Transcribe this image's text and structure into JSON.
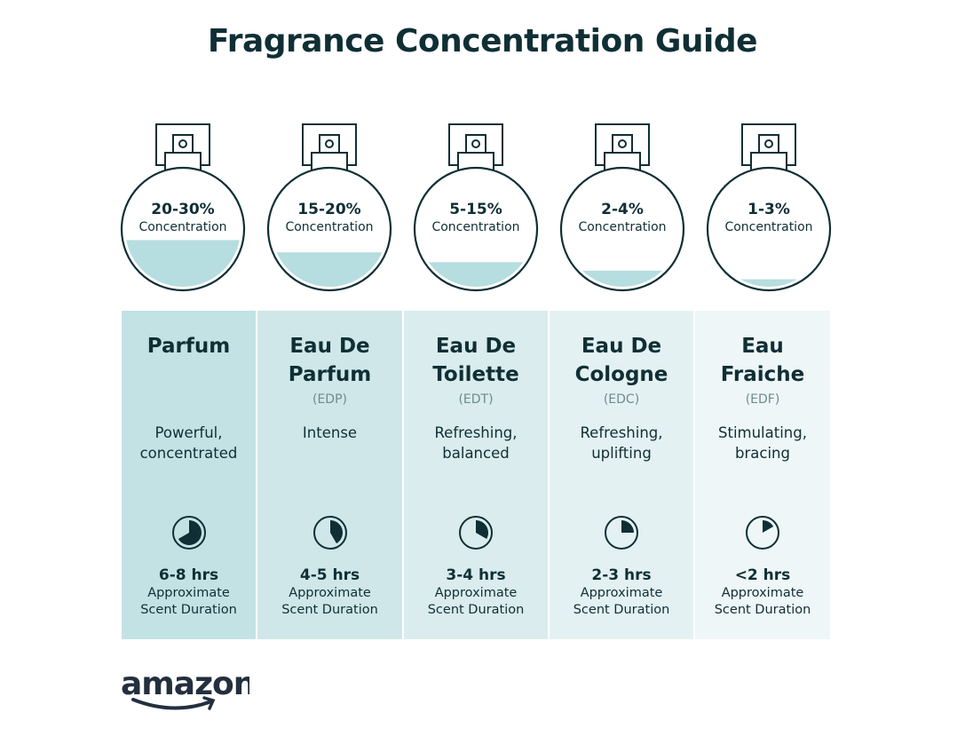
{
  "title": "Fragrance Concentration Guide",
  "colors": {
    "text": "#0f2f35",
    "liquid": "#b6dde0",
    "panel_left": "#c3e2e4",
    "panel_right": "#f1f7f8"
  },
  "types": [
    {
      "concentration": "20-30%",
      "concentration_label": "Concentration",
      "fill_level": 0.41,
      "name": "Parfum",
      "abbr": "",
      "desc": "Powerful, concentrated",
      "duration": "6-8 hrs",
      "duration_caption": "Approximate Scent Duration",
      "clock_fill_hours": 8,
      "panel": "#c3e2e4"
    },
    {
      "concentration": "15-20%",
      "concentration_label": "Concentration",
      "fill_level": 0.31,
      "name": "Eau De Parfum",
      "abbr": "(EDP)",
      "desc": "Intense",
      "duration": "4-5 hrs",
      "duration_caption": "Approximate Scent Duration",
      "clock_fill_hours": 5,
      "panel": "#cfe7e9"
    },
    {
      "concentration": "5-15%",
      "concentration_label": "Concentration",
      "fill_level": 0.23,
      "name": "Eau De Toilette",
      "abbr": "(EDT)",
      "desc": "Refreshing, balanced",
      "duration": "3-4 hrs",
      "duration_caption": "Approximate Scent Duration",
      "clock_fill_hours": 4,
      "panel": "#daeced"
    },
    {
      "concentration": "2-4%",
      "concentration_label": "Concentration",
      "fill_level": 0.16,
      "name": "Eau De Cologne",
      "abbr": "(EDC)",
      "desc": "Refreshing, uplifting",
      "duration": "2-3 hrs",
      "duration_caption": "Approximate Scent Duration",
      "clock_fill_hours": 3,
      "panel": "#e4f1f2"
    },
    {
      "concentration": "1-3%",
      "concentration_label": "Concentration",
      "fill_level": 0.09,
      "name": "Eau Fraiche",
      "abbr": "(EDF)",
      "desc": "Stimulating, bracing",
      "duration": "<2 hrs",
      "duration_caption": "Approximate Scent Duration",
      "clock_fill_hours": 2,
      "panel": "#eef6f7"
    }
  ],
  "logo": {
    "text": "amazon"
  }
}
